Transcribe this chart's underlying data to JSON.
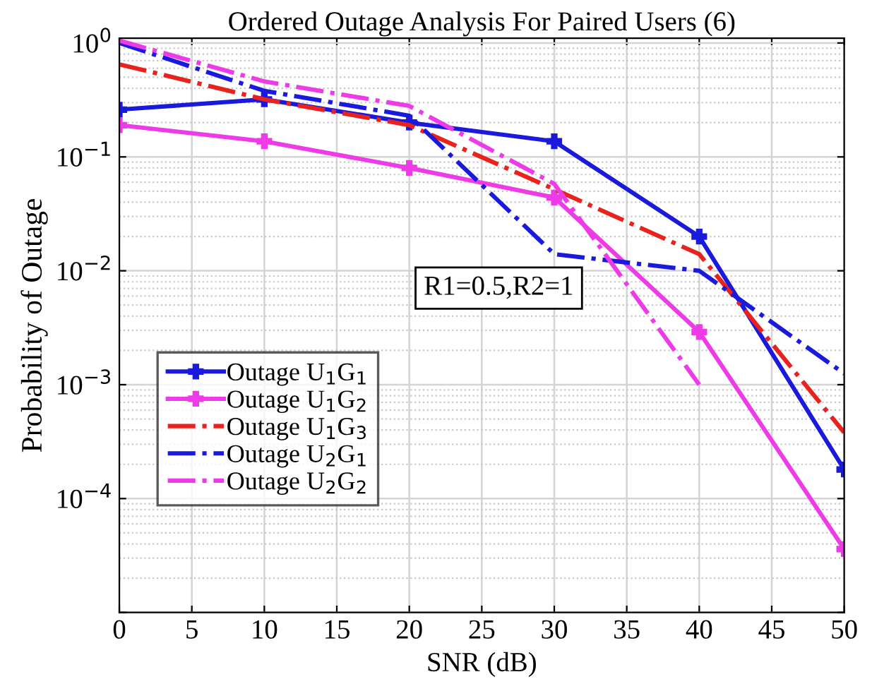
{
  "chart_data": {
    "type": "line",
    "title": "Ordered Outage Analysis For Paired Users (6)",
    "xlabel": "SNR (dB)",
    "ylabel": "Probability of Outage",
    "x": [
      0,
      10,
      20,
      30,
      40,
      50
    ],
    "series": [
      {
        "name": "Outage U$_{1}$G$_{1}$",
        "color": "#1a1adc",
        "line_style": "solid",
        "marker": "cross",
        "values": [
          0.26,
          0.32,
          0.2,
          0.137,
          0.02,
          0.00018
        ]
      },
      {
        "name": "Outage U$_{1}$G$_{2}$",
        "color": "#ee3be8",
        "line_style": "solid",
        "marker": "cross",
        "values": [
          0.19,
          0.137,
          0.08,
          0.044,
          0.0029,
          3.6e-05
        ]
      },
      {
        "name": "Outage U$_{1}$G$_{3}$",
        "color": "#e8231e",
        "line_style": "dashdot",
        "marker": "none",
        "values": [
          0.65,
          0.32,
          0.19,
          0.052,
          0.014,
          0.00038
        ]
      },
      {
        "name": "Outage U$_{2}$G$_{1}$",
        "color": "#1a1adc",
        "line_style": "dashdot",
        "marker": "none",
        "values": [
          1.0,
          0.38,
          0.23,
          0.014,
          0.01,
          0.00125
        ]
      },
      {
        "name": "Outage U$_{2}$G$_{2}$",
        "color": "#ee3be8",
        "line_style": "dashdot",
        "marker": "none",
        "values": [
          1.05,
          0.46,
          0.28,
          0.058,
          0.001,
          null
        ]
      }
    ],
    "log": "y",
    "xlim": [
      0,
      50
    ],
    "ylim": [
      1e-05,
      1.1
    ],
    "xticks": [
      0,
      5,
      10,
      15,
      20,
      25,
      30,
      35,
      40,
      45,
      50
    ],
    "yticks": [
      {
        "value": 1e-05,
        "label": null
      },
      {
        "value": 0.0001,
        "label": "10$^{−4}$"
      },
      {
        "value": 0.001,
        "label": "10$^{−3}$"
      },
      {
        "value": 0.01,
        "label": "10$^{−2}$"
      },
      {
        "value": 0.1,
        "label": "10$^{−1}$"
      },
      {
        "value": 1,
        "label": "10$^{0}$"
      }
    ],
    "grid": true,
    "legend": "bottom left",
    "annotations": [
      "R1=0.5,R2=1"
    ]
  }
}
